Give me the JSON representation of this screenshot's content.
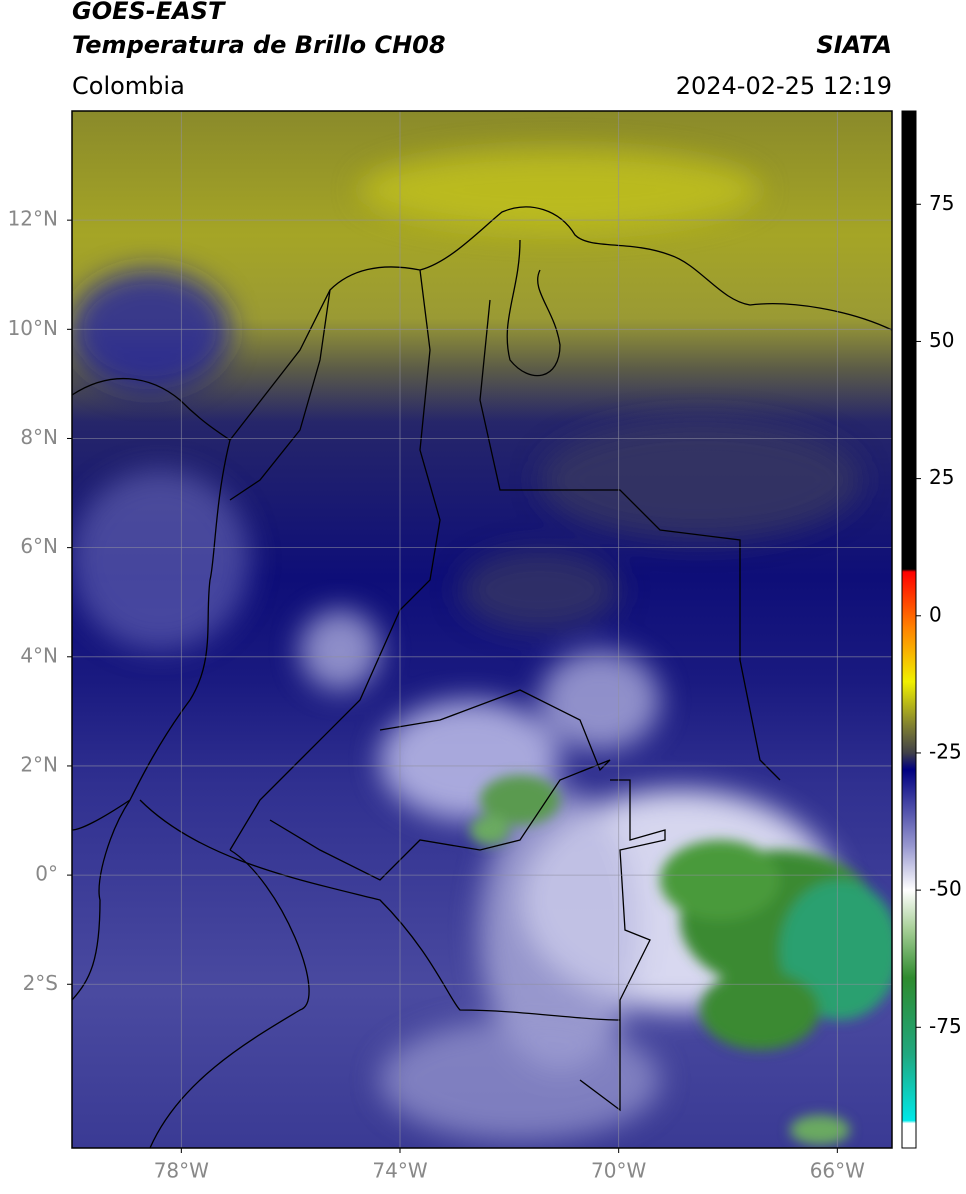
{
  "header": {
    "title": "GOES-EAST",
    "subtitle": "Temperatura de Brillo CH08",
    "agency": "SIATA",
    "region": "Colombia",
    "timestamp": "2024-02-25 12:19"
  },
  "map": {
    "xlim": [
      -80,
      -65
    ],
    "ylim": [
      -5,
      14
    ],
    "grid": true,
    "xticks": [
      {
        "value": -78,
        "label": "78°W"
      },
      {
        "value": -74,
        "label": "74°W"
      },
      {
        "value": -70,
        "label": "70°W"
      },
      {
        "value": -66,
        "label": "66°W"
      }
    ],
    "yticks": [
      {
        "value": 12,
        "label": "12°N"
      },
      {
        "value": 10,
        "label": "10°N"
      },
      {
        "value": 8,
        "label": "8°N"
      },
      {
        "value": 6,
        "label": "6°N"
      },
      {
        "value": 4,
        "label": "4°N"
      },
      {
        "value": 2,
        "label": "2°N"
      },
      {
        "value": 0,
        "label": "0°"
      },
      {
        "value": -2,
        "label": "2°S"
      }
    ]
  },
  "colorbar": {
    "lim": [
      -97,
      92
    ],
    "ticks": [
      -75,
      -50,
      -25,
      0,
      25,
      50,
      75
    ],
    "stops": [
      {
        "value": -97,
        "color": "#ffffff"
      },
      {
        "value": -92.5,
        "color": "#ffffff"
      },
      {
        "value": -92,
        "color": "#00e8e8"
      },
      {
        "value": -80,
        "color": "#20a880"
      },
      {
        "value": -66,
        "color": "#2e8b2e"
      },
      {
        "value": -57,
        "color": "#a8d098"
      },
      {
        "value": -50,
        "color": "#ffffff"
      },
      {
        "value": -42,
        "color": "#9898d0"
      },
      {
        "value": -28,
        "color": "#000080"
      },
      {
        "value": -25,
        "color": "#404048"
      },
      {
        "value": -20,
        "color": "#808030"
      },
      {
        "value": -12,
        "color": "#f0f000"
      },
      {
        "value": -2,
        "color": "#ff8000"
      },
      {
        "value": 8,
        "color": "#ff0000"
      },
      {
        "value": 8.5,
        "color": "#000000"
      },
      {
        "value": 92,
        "color": "#000000"
      }
    ]
  }
}
